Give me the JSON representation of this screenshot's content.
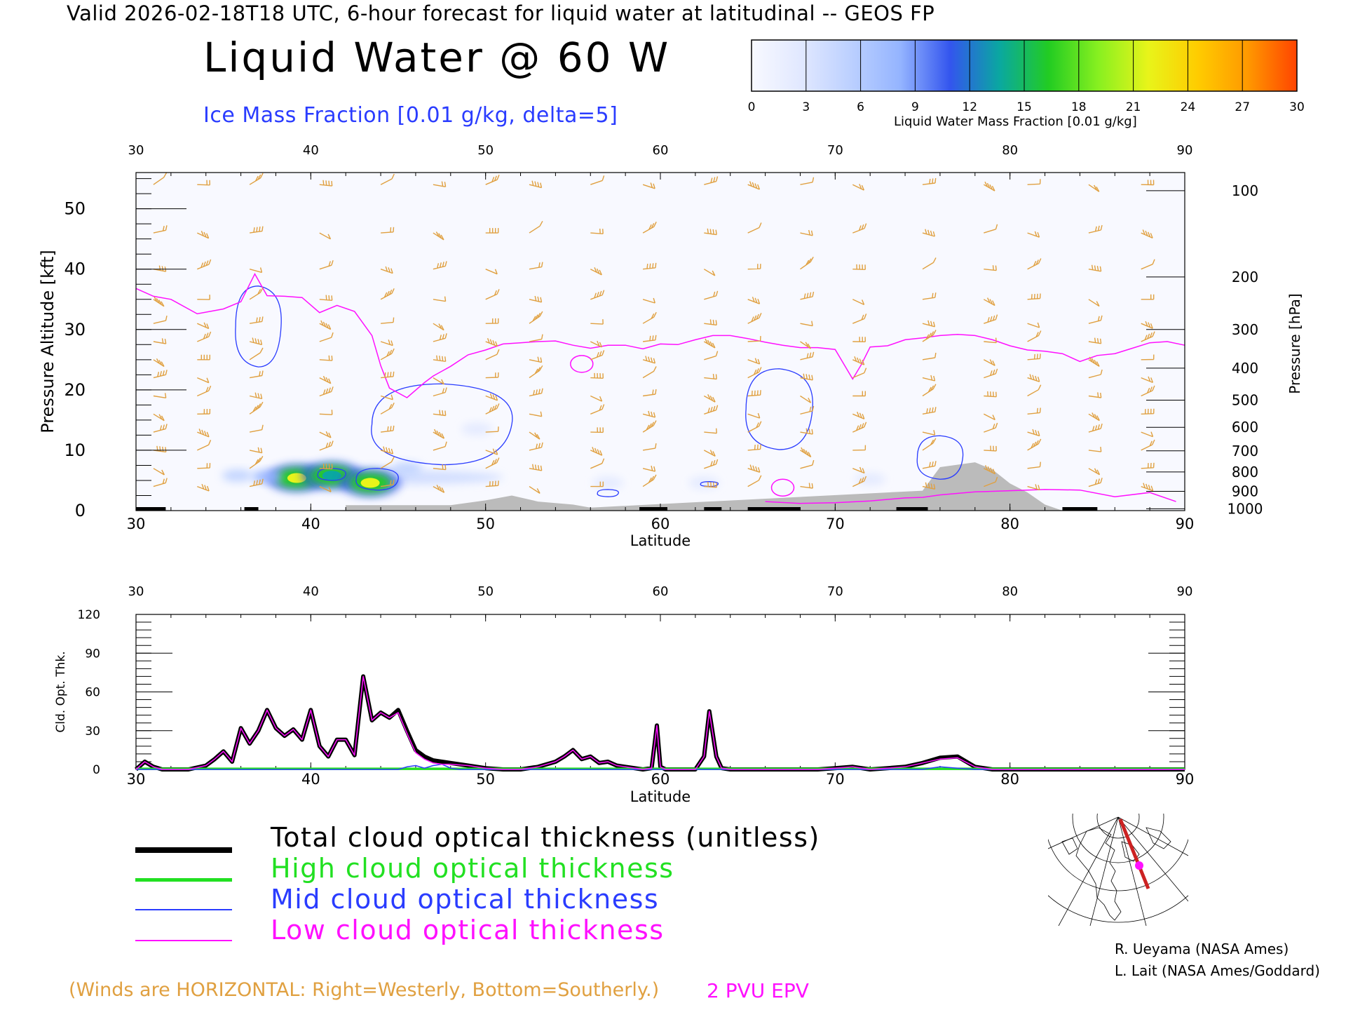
{
  "header": "Valid 2026-02-18T18 UTC, 6-hour forecast for liquid water at latitudinal -- GEOS FP",
  "title": "Liquid Water @ 60 W",
  "contour_label": "Ice Mass Fraction [0.01 g/kg, delta=5]",
  "colorbar": {
    "title": "Liquid Water Mass Fraction [0.01 g/kg]",
    "ticks": [
      "0",
      "3",
      "6",
      "9",
      "12",
      "15",
      "18",
      "21",
      "24",
      "27",
      "30"
    ],
    "colors": [
      "#f8f9ff",
      "#e1e8ff",
      "#bcd0ff",
      "#94b4ff",
      "#3355ee",
      "#0aa8a0",
      "#22cc22",
      "#88f020",
      "#e8f41a",
      "#ffcc00",
      "#ff9900",
      "#ff4400"
    ]
  },
  "colors": {
    "wind_barbs": "#e0a040",
    "ice_contour": "#2a3cff",
    "epv_line": "#ff10ff",
    "terrain": "#bbbbbb",
    "total": "#000000",
    "high": "#22e022",
    "mid": "#2a3cff",
    "low": "#ff10ff"
  },
  "legend": {
    "total": "Total cloud optical thickness (unitless)",
    "high": "High cloud optical thickness",
    "mid": "Mid cloud optical thickness",
    "low": "Low cloud optical thickness"
  },
  "winds_note": "(Winds are HORIZONTAL: Right=Westerly, Bottom=Southerly.)",
  "epv_label": "2 PVU EPV",
  "credits": [
    "R. Ueyama (NASA Ames)",
    "L. Lait (NASA Ames/Goddard)"
  ],
  "chart_data": [
    {
      "type": "heatmap",
      "name": "Liquid water cross-section",
      "x_label": "Latitude",
      "y_label": "Pressure Altitude [kft]",
      "y_right_label": "Pressure [hPa]",
      "xlim": [
        30,
        90
      ],
      "ylim": [
        0,
        56
      ],
      "x_ticks": [
        "30",
        "40",
        "50",
        "60",
        "70",
        "80",
        "90"
      ],
      "y_ticks": [
        "0",
        "10",
        "20",
        "30",
        "40",
        "50"
      ],
      "pressure_ticks": [
        {
          "label": "100",
          "kft": 53
        },
        {
          "label": "200",
          "kft": 38.7
        },
        {
          "label": "300",
          "kft": 30
        },
        {
          "label": "400",
          "kft": 23.6
        },
        {
          "label": "500",
          "kft": 18.3
        },
        {
          "label": "600",
          "kft": 13.8
        },
        {
          "label": "700",
          "kft": 9.9
        },
        {
          "label": "800",
          "kft": 6.4
        },
        {
          "label": "900",
          "kft": 3.2
        },
        {
          "label": "1000",
          "kft": 0.3
        }
      ],
      "liquid_water_blobs": [
        {
          "lat": 39.2,
          "kft": 5.4,
          "value": 22
        },
        {
          "lat": 41.2,
          "kft": 5.8,
          "value": 14
        },
        {
          "lat": 43.4,
          "kft": 4.6,
          "value": 22
        },
        {
          "lat": 37.5,
          "kft": 5.6,
          "value": 9
        },
        {
          "lat": 45.5,
          "kft": 7.0,
          "value": 6
        },
        {
          "lat": 35.8,
          "kft": 5.8,
          "value": 5
        },
        {
          "lat": 49.5,
          "kft": 13.5,
          "value": 2
        },
        {
          "lat": 57,
          "kft": 4.6,
          "value": 2
        },
        {
          "lat": 62.5,
          "kft": 4.6,
          "value": 3
        },
        {
          "lat": 72,
          "kft": 5.2,
          "value": 2
        }
      ],
      "epv_2pvu_kft": [
        [
          30,
          36.8
        ],
        [
          31,
          35.5
        ],
        [
          32,
          35.0
        ],
        [
          33.5,
          32.6
        ],
        [
          35,
          33.4
        ],
        [
          36,
          34.6
        ],
        [
          36.8,
          39.2
        ],
        [
          37.5,
          35.6
        ],
        [
          38.5,
          35.5
        ],
        [
          39.5,
          35.3
        ],
        [
          40.5,
          32.8
        ],
        [
          41.5,
          34.0
        ],
        [
          42.5,
          33.0
        ],
        [
          43.5,
          29.0
        ],
        [
          44,
          24.0
        ],
        [
          44.5,
          20.3
        ],
        [
          45.5,
          18.7
        ],
        [
          46.5,
          21.2
        ],
        [
          47,
          22.3
        ],
        [
          48,
          23.9
        ],
        [
          49,
          25.8
        ],
        [
          50,
          26.6
        ],
        [
          51,
          27.6
        ],
        [
          52,
          27.8
        ],
        [
          53,
          28.0
        ],
        [
          54,
          28.1
        ],
        [
          55,
          27.4
        ],
        [
          56,
          26.9
        ],
        [
          57,
          27.4
        ],
        [
          58,
          27.4
        ],
        [
          59,
          26.8
        ],
        [
          60,
          27.6
        ],
        [
          61,
          27.5
        ],
        [
          62,
          28.3
        ],
        [
          63,
          29.0
        ],
        [
          64,
          29.0
        ],
        [
          65,
          28.5
        ],
        [
          66,
          27.9
        ],
        [
          67,
          27.4
        ],
        [
          68,
          27.0
        ],
        [
          69,
          27.0
        ],
        [
          70,
          26.7
        ],
        [
          71,
          21.8
        ],
        [
          71.5,
          24.2
        ],
        [
          72,
          27.1
        ],
        [
          73,
          27.3
        ],
        [
          74,
          28.3
        ],
        [
          75,
          28.6
        ],
        [
          76,
          29.0
        ],
        [
          77,
          29.2
        ],
        [
          78,
          29.0
        ],
        [
          79,
          28.3
        ],
        [
          80,
          27.3
        ],
        [
          81,
          26.6
        ],
        [
          82,
          26.4
        ],
        [
          83,
          26.0
        ],
        [
          84,
          24.7
        ],
        [
          85,
          25.7
        ],
        [
          86,
          26.0
        ],
        [
          87,
          26.9
        ],
        [
          88,
          27.8
        ],
        [
          89,
          28.0
        ],
        [
          90,
          27.4
        ]
      ],
      "epv_low_kft": [
        [
          66,
          1.5
        ],
        [
          68,
          1.2
        ],
        [
          70,
          1.3
        ],
        [
          72,
          1.6
        ],
        [
          74,
          2.1
        ],
        [
          75,
          2.2
        ],
        [
          76,
          2.6
        ],
        [
          78,
          3.1
        ],
        [
          80,
          3.3
        ],
        [
          82,
          3.5
        ],
        [
          84,
          3.4
        ],
        [
          86,
          2.3
        ],
        [
          88,
          3.0
        ],
        [
          89.5,
          1.5
        ]
      ],
      "epv_blobs": [
        {
          "lat": 55.5,
          "kft": 24.3
        },
        {
          "lat": 67.0,
          "kft": 3.8
        }
      ],
      "ice_contours": [
        {
          "lat": 37.0,
          "kft": 30.5,
          "w": 1.3,
          "h": 6.7
        },
        {
          "lat": 47.5,
          "kft": 14.3,
          "w": 4.0,
          "h": 6.7
        },
        {
          "lat": 66.8,
          "kft": 16.8,
          "w": 1.9,
          "h": 6.7
        },
        {
          "lat": 76.0,
          "kft": 8.8,
          "w": 1.3,
          "h": 3.6
        },
        {
          "lat": 41.2,
          "kft": 6.0,
          "w": 0.8,
          "h": 1.0
        },
        {
          "lat": 43.8,
          "kft": 5.2,
          "w": 1.2,
          "h": 1.8
        },
        {
          "lat": 57.0,
          "kft": 2.9,
          "w": 0.6,
          "h": 0.6
        },
        {
          "lat": 62.8,
          "kft": 4.4,
          "w": 0.5,
          "h": 0.4
        }
      ],
      "terrain_kft": [
        [
          42,
          0.9
        ],
        [
          48,
          0.9
        ],
        [
          50,
          1.7
        ],
        [
          51.5,
          2.5
        ],
        [
          53,
          1.5
        ],
        [
          55,
          1.0
        ],
        [
          56,
          0.5
        ],
        [
          75,
          3.3
        ],
        [
          76,
          7.2
        ],
        [
          78,
          8.0
        ],
        [
          79,
          6.8
        ],
        [
          80,
          4.5
        ],
        [
          81,
          3.0
        ],
        [
          82,
          1.0
        ],
        [
          83,
          0
        ]
      ],
      "wind_barb_latitudes": [
        31,
        33.5,
        36.5,
        40.5,
        44,
        47,
        50,
        52.5,
        56,
        59,
        62.5,
        65,
        68,
        71,
        75,
        78.5,
        81,
        84.5,
        87.5
      ],
      "wind_barb_levels_kft": [
        54,
        46,
        40,
        35,
        31,
        28,
        25,
        22,
        19,
        16,
        13,
        10,
        7,
        4
      ]
    },
    {
      "type": "line",
      "name": "Cloud optical thickness",
      "x_label": "Latitude",
      "y_label": "Cld. Opt. Thk.",
      "xlim": [
        30,
        90
      ],
      "ylim": [
        0,
        120
      ],
      "x_ticks": [
        "30",
        "40",
        "50",
        "60",
        "70",
        "80",
        "90"
      ],
      "y_ticks": [
        "0",
        "30",
        "60",
        "90",
        "120"
      ],
      "series": [
        {
          "name": "Total cloud optical thickness (unitless)",
          "color": "#000000",
          "x": [
            30,
            30.5,
            31,
            31.5,
            32,
            33,
            34,
            34.5,
            35,
            35.5,
            36,
            36.5,
            37,
            37.5,
            38,
            38.5,
            39,
            39.5,
            40,
            40.5,
            41,
            41.5,
            42,
            42.5,
            43,
            43.5,
            44,
            44.5,
            45,
            45.5,
            46,
            46.5,
            47,
            47.5,
            48,
            49,
            50,
            51,
            52,
            53,
            54,
            54.5,
            55,
            55.5,
            56,
            56.5,
            57,
            57.5,
            58,
            59,
            59.5,
            59.8,
            60,
            60.3,
            60.5,
            61,
            62,
            62.5,
            62.8,
            63.2,
            63.5,
            64,
            65,
            66,
            67,
            68,
            69,
            70,
            71,
            72,
            73,
            74,
            75,
            76,
            77,
            78,
            79,
            80,
            82,
            84,
            86,
            88,
            90
          ],
          "values": [
            0,
            6,
            2,
            0,
            0,
            0,
            3,
            8,
            14,
            6,
            32,
            20,
            30,
            46,
            32,
            26,
            31,
            23,
            46,
            18,
            10,
            23,
            23,
            11,
            72,
            38,
            44,
            40,
            46,
            30,
            15,
            10,
            7,
            6,
            5,
            3,
            1,
            0,
            0,
            2,
            6,
            10,
            15,
            8,
            10,
            5,
            6,
            3,
            2,
            0,
            1,
            34,
            2,
            0,
            0,
            0,
            0,
            10,
            45,
            10,
            1,
            0,
            0,
            0,
            0,
            0,
            0,
            1,
            2,
            0,
            1,
            2,
            5,
            9,
            10,
            2,
            0,
            0,
            0,
            0,
            0,
            0,
            0
          ]
        },
        {
          "name": "High cloud optical thickness",
          "color": "#22e022",
          "x": [
            30,
            90
          ],
          "values": [
            0.5,
            0.5
          ]
        },
        {
          "name": "Mid cloud optical thickness",
          "color": "#2a3cff",
          "x": [
            30,
            45,
            45.5,
            46,
            46.5,
            47,
            47.5,
            48,
            48.5,
            49,
            50,
            60,
            75,
            76,
            77,
            78,
            90
          ],
          "values": [
            0,
            0,
            2,
            3,
            1,
            3,
            4,
            1,
            0,
            0,
            0,
            0,
            0,
            2,
            1,
            0,
            0
          ]
        },
        {
          "name": "Low cloud optical thickness",
          "color": "#ff10ff",
          "x": [
            30,
            30.5,
            31,
            31.5,
            32,
            33,
            34,
            34.5,
            35,
            35.5,
            36,
            36.5,
            37,
            37.5,
            38,
            38.5,
            39,
            39.5,
            40,
            40.5,
            41,
            41.5,
            42,
            42.5,
            43,
            43.5,
            44,
            44.5,
            45,
            45.5,
            46,
            46.5,
            47,
            47.5,
            48,
            49,
            50,
            51,
            52,
            53,
            54,
            54.5,
            55,
            55.5,
            56,
            56.5,
            57,
            57.5,
            58,
            59,
            59.5,
            59.8,
            60,
            60.3,
            60.5,
            61,
            62,
            62.5,
            62.8,
            63.2,
            63.5,
            64,
            65,
            66,
            67,
            68,
            69,
            70,
            71,
            72,
            73,
            74,
            75,
            76,
            77,
            78,
            79,
            80,
            82,
            84,
            86,
            88,
            90
          ],
          "values": [
            0,
            6,
            2,
            0,
            0,
            0,
            3,
            8,
            14,
            6,
            32,
            20,
            30,
            46,
            32,
            26,
            31,
            23,
            46,
            18,
            10,
            23,
            23,
            11,
            72,
            38,
            44,
            40,
            44,
            28,
            13,
            8,
            5,
            4,
            4,
            3,
            1,
            0,
            0,
            2,
            6,
            10,
            15,
            8,
            10,
            5,
            6,
            3,
            2,
            0,
            1,
            34,
            2,
            0,
            0,
            0,
            0,
            10,
            45,
            10,
            1,
            0,
            0,
            0,
            0,
            0,
            0,
            1,
            2,
            0,
            1,
            2,
            5,
            8,
            9,
            2,
            0,
            0,
            0,
            0,
            0,
            0,
            0
          ]
        }
      ]
    }
  ]
}
